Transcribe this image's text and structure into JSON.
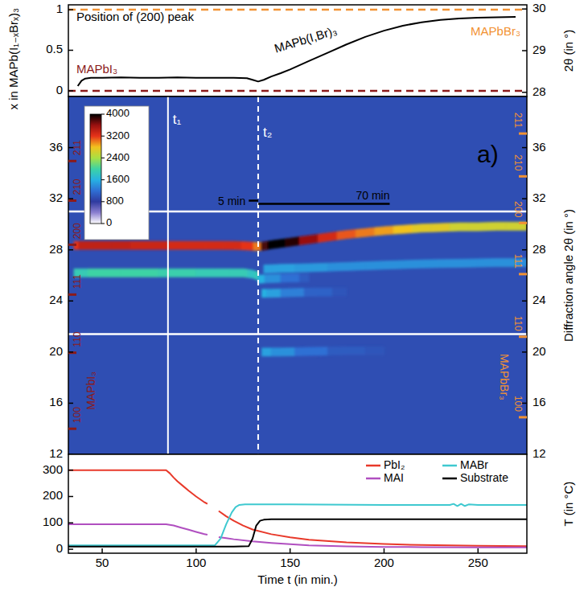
{
  "chart_data": [
    {
      "type": "line",
      "title": "Position of (200) peak",
      "y_label": "x in MAPb(I₁₋ₓBrₓ)₃",
      "y2_label": "2θ (in °)",
      "xlim": [
        32,
        276
      ],
      "ylim": [
        -0.07,
        1.06
      ],
      "yticks": [
        0,
        0.5,
        1
      ],
      "y2lim": [
        27.9,
        30.1
      ],
      "y2ticks": [
        28,
        29,
        30
      ],
      "tick_labels": "y",
      "reference_lines": [
        {
          "value": 0,
          "label": "MAPbI₃",
          "color": "#8b1a1a"
        },
        {
          "value": 1,
          "label": "MAPbBr₃",
          "color": "#f29233"
        }
      ],
      "series": [
        {
          "label": "MAPb(I,Br)₃",
          "color": "#000000",
          "axis": "y2",
          "x": [
            37,
            39,
            41,
            44,
            50,
            60,
            70,
            80,
            90,
            100,
            110,
            120,
            127,
            130,
            133,
            136,
            140,
            145,
            150,
            160,
            170,
            180,
            190,
            200,
            210,
            220,
            230,
            240,
            250,
            260,
            270
          ],
          "values": [
            28.15,
            28.28,
            28.33,
            28.35,
            28.35,
            28.36,
            28.35,
            28.35,
            28.36,
            28.35,
            28.35,
            28.35,
            28.34,
            28.3,
            28.26,
            28.3,
            28.38,
            28.46,
            28.55,
            28.75,
            28.95,
            29.15,
            29.33,
            29.48,
            29.6,
            29.68,
            29.74,
            29.77,
            29.79,
            29.8,
            29.81
          ]
        }
      ]
    },
    {
      "type": "heatmap",
      "y_label": "Diffraction angle 2θ (in °)",
      "panel_label": "a)",
      "xlim": [
        32,
        276
      ],
      "ylim": [
        12,
        40
      ],
      "yticks": [
        12,
        16,
        20,
        24,
        28,
        32,
        36
      ],
      "tick_labels": "y",
      "colorbar": {
        "range": [
          0,
          4000
        ],
        "ticks": [
          0,
          800,
          1600,
          2400,
          3200,
          4000
        ]
      },
      "background": 950,
      "window_edges": [
        21.4,
        31.0
      ],
      "bands": [
        {
          "x": [
            35,
            40,
            50,
            60,
            70,
            80,
            90,
            100,
            110,
            120,
            128,
            133,
            136,
            140,
            145,
            150,
            160,
            170,
            180,
            190,
            200,
            210,
            220,
            230,
            240,
            250,
            260,
            270,
            276
          ],
          "angle": [
            28.35,
            28.35,
            28.35,
            28.35,
            28.35,
            28.35,
            28.35,
            28.35,
            28.35,
            28.35,
            28.3,
            28.25,
            28.3,
            28.4,
            28.5,
            28.6,
            28.8,
            29.0,
            29.2,
            29.35,
            29.5,
            29.6,
            29.7,
            29.75,
            29.8,
            29.8,
            29.85,
            29.85,
            29.85
          ],
          "intensity": [
            3200,
            3400,
            3400,
            3400,
            3350,
            3350,
            3300,
            3300,
            3300,
            3300,
            3200,
            3000,
            3800,
            4000,
            4000,
            3900,
            3600,
            3300,
            3100,
            3000,
            2900,
            2800,
            2700,
            2700,
            2600,
            2600,
            2600,
            2600,
            2600
          ]
        },
        {
          "x": [
            35,
            50,
            70,
            90,
            110,
            125,
            130,
            133
          ],
          "angle": [
            26.2,
            26.2,
            26.2,
            26.2,
            26.2,
            26.2,
            26.1,
            25.95
          ],
          "intensity": [
            1900,
            2000,
            2000,
            1950,
            1900,
            1900,
            1800,
            1900
          ]
        },
        {
          "x": [
            136,
            145,
            160,
            180,
            200,
            220,
            240,
            260,
            276
          ],
          "angle": [
            26.5,
            26.55,
            26.6,
            26.7,
            26.8,
            26.9,
            26.95,
            27.0,
            27.0
          ],
          "intensity": [
            1500,
            1500,
            1450,
            1400,
            1400,
            1400,
            1400,
            1400,
            1400
          ]
        },
        {
          "x": [
            133,
            140,
            150,
            160
          ],
          "angle": [
            25.7,
            25.75,
            25.8,
            25.8
          ],
          "intensity": [
            1600,
            1400,
            1200,
            1050
          ]
        },
        {
          "x": [
            135,
            140,
            150,
            165,
            180
          ],
          "angle": [
            24.6,
            24.6,
            24.65,
            24.7,
            24.7
          ],
          "intensity": [
            1600,
            1500,
            1300,
            1100,
            1000
          ]
        },
        {
          "x": [
            135,
            145,
            160,
            180,
            200
          ],
          "angle": [
            20.0,
            20.0,
            20.05,
            20.1,
            20.1
          ],
          "intensity": [
            1500,
            1400,
            1200,
            1050,
            1000
          ]
        }
      ],
      "markers": [
        {
          "label": "t₁",
          "x": 85,
          "line_style": "solid"
        },
        {
          "label": "t₂",
          "x": 133,
          "line_style": "dashed"
        }
      ],
      "annotations": [
        {
          "text": "5 min",
          "x0": 128,
          "x1": 133,
          "y": 31.85
        },
        {
          "text": "70 min",
          "x0": 133,
          "x1": 203,
          "y": 31.6
        }
      ],
      "reflections": [
        {
          "label": "MAPbI₃",
          "color": "#8b1a1a",
          "hkl": [
            "100",
            "110",
            "111",
            "200",
            "210",
            "211"
          ],
          "angle": [
            14.0,
            19.95,
            24.5,
            28.4,
            31.85,
            34.95
          ]
        },
        {
          "label": "MAPbBr₃",
          "color": "#f29233",
          "hkl": [
            "100",
            "110",
            "111",
            "200",
            "210",
            "211"
          ],
          "angle": [
            14.9,
            21.2,
            26.1,
            30.1,
            33.75,
            37.1
          ]
        }
      ]
    },
    {
      "type": "line",
      "x_label": "Time t (in min.)",
      "y_label": "T (in °C)",
      "xlim": [
        32,
        276
      ],
      "xticks": [
        50,
        100,
        150,
        200,
        250
      ],
      "ylim": [
        -15,
        360
      ],
      "yticks": [
        0,
        100,
        200,
        300
      ],
      "legend": "upper right",
      "series": [
        {
          "name": "PbI₂",
          "color": "#e8392a",
          "x": [
            32,
            50,
            70,
            84,
            86,
            88,
            90,
            93,
            96,
            100,
            104,
            106,
            108,
            112,
            116,
            120,
            125,
            130,
            140,
            150,
            160,
            180,
            200,
            220,
            250,
            276
          ],
          "values": [
            300,
            300,
            300,
            300,
            288,
            272,
            258,
            240,
            222,
            200,
            180,
            172,
            null,
            145,
            125,
            108,
            90,
            75,
            57,
            45,
            36,
            26,
            20,
            16,
            13,
            12
          ]
        },
        {
          "name": "MAI",
          "color": "#b04fc0",
          "x": [
            32,
            50,
            70,
            84,
            88,
            92,
            96,
            100,
            104,
            106,
            108,
            112,
            116,
            120,
            130,
            140,
            150,
            160,
            180,
            200,
            220,
            250,
            276
          ],
          "values": [
            95,
            95,
            95,
            95,
            90,
            82,
            74,
            66,
            58,
            55,
            null,
            46,
            42,
            38,
            30,
            24,
            19,
            15,
            11,
            9,
            8,
            7,
            7
          ]
        },
        {
          "name": "MABr",
          "color": "#3fc9d0",
          "x": [
            32,
            60,
            100,
            110,
            113,
            116,
            119,
            121,
            123,
            126,
            130,
            150,
            200,
            235,
            237,
            239,
            241,
            243,
            245,
            250,
            276
          ],
          "values": [
            15,
            15,
            15,
            15,
            40,
            95,
            140,
            160,
            168,
            170,
            170,
            170,
            168,
            168,
            172,
            164,
            172,
            164,
            170,
            168,
            168
          ]
        },
        {
          "name": "Substrate",
          "color": "#000000",
          "x": [
            32,
            80,
            120,
            128,
            130,
            132,
            134,
            136,
            140,
            200,
            276
          ],
          "values": [
            10,
            10,
            10,
            12,
            40,
            90,
            108,
            112,
            114,
            114,
            114
          ]
        }
      ]
    }
  ]
}
